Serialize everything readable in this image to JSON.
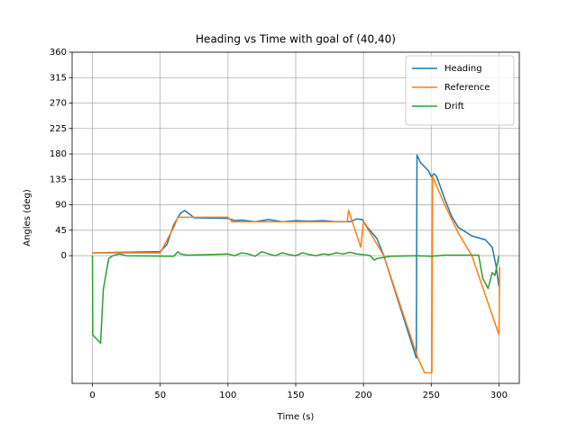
{
  "chart_data": {
    "type": "line",
    "title": "Heading vs Time with goal of (40,40)",
    "x_label": "Time (s)",
    "y_label": "Angles (deg)",
    "xlim": [
      -15,
      315
    ],
    "ylim": [
      -226,
      360
    ],
    "xticks": [
      0,
      50,
      100,
      150,
      200,
      250,
      300
    ],
    "yticks": [
      0,
      45,
      90,
      135,
      180,
      225,
      270,
      315,
      360
    ],
    "grid": true,
    "legend": "upper right",
    "series": [
      {
        "name": "Heading",
        "color": "#1f77b4",
        "x": [
          0,
          50,
          55,
          60,
          65,
          68,
          72,
          75,
          100,
          105,
          110,
          120,
          130,
          140,
          150,
          160,
          170,
          180,
          190,
          195,
          199,
          203,
          210,
          215,
          239,
          239.5,
          242,
          248,
          250,
          252,
          254,
          260,
          265,
          270,
          280,
          290,
          295,
          298,
          300
        ],
        "values": [
          5,
          7,
          20,
          55,
          75,
          80,
          73,
          67,
          66,
          62,
          63,
          60,
          64,
          60,
          62,
          61,
          62,
          60,
          60,
          65,
          64,
          50,
          30,
          0,
          -181,
          178,
          165,
          150,
          140,
          145,
          140,
          100,
          70,
          50,
          35,
          28,
          15,
          -20,
          -55
        ]
      },
      {
        "name": "Reference",
        "color": "#ff7f0e",
        "x": [
          0,
          50,
          60,
          63,
          100,
          103,
          188,
          189,
          198,
          200,
          210,
          215,
          240,
          245,
          250.5,
          251,
          260,
          270,
          280,
          300,
          300.5
        ],
        "values": [
          5,
          5,
          50,
          68,
          68,
          60,
          60,
          80,
          15,
          60,
          20,
          0,
          -180,
          -207,
          -207,
          140,
          90,
          40,
          0,
          -140,
          -20
        ]
      },
      {
        "name": "Drift",
        "color": "#2ca02c",
        "x": [
          0,
          0.2,
          6,
          8,
          12,
          15,
          20,
          25,
          60,
          63,
          65,
          70,
          100,
          105,
          110,
          115,
          120,
          125,
          130,
          135,
          140,
          145,
          150,
          155,
          160,
          165,
          170,
          175,
          180,
          185,
          190,
          195,
          200,
          205,
          208,
          210,
          220,
          240,
          250,
          260,
          285,
          288,
          292,
          295,
          297,
          300
        ],
        "values": [
          0,
          -140,
          -155,
          -60,
          -5,
          0,
          3,
          0,
          -1,
          7,
          3,
          1,
          3,
          0,
          5,
          3,
          -1,
          7,
          3,
          0,
          5,
          2,
          0,
          5,
          2,
          0,
          3,
          2,
          5,
          3,
          6,
          3,
          2,
          0,
          -8,
          -5,
          -1,
          0,
          -1,
          1,
          1,
          -40,
          -58,
          -30,
          -35,
          0
        ]
      }
    ]
  }
}
